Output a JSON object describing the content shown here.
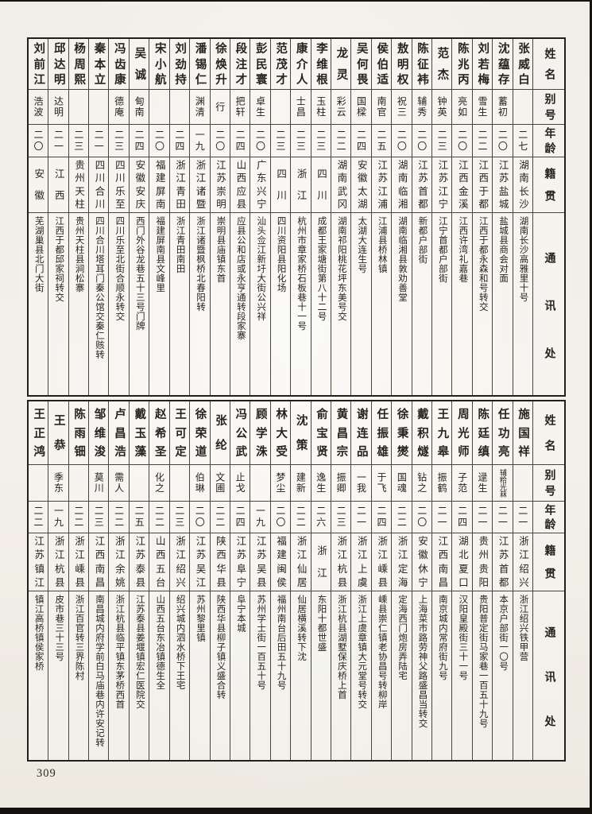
{
  "page": {
    "number": "309"
  },
  "headers": {
    "name": "姓名",
    "alias": "别号",
    "age": "年龄",
    "native": "籍贯",
    "address": "通讯处"
  },
  "tables": [
    {
      "id": "top",
      "people": [
        {
          "name": "张威白",
          "alias": "",
          "age": "二七",
          "native": "湖南长沙",
          "address": "湖南长沙高雅里十号"
        },
        {
          "name": "沈蕴存",
          "alias": "蓄初",
          "age": "二〇",
          "native": "江苏盐城",
          "address": "盐城县商会对面"
        },
        {
          "name": "刘若梅",
          "alias": "雪生",
          "age": "二二",
          "native": "江西于都",
          "address": "江西于都永森和号转交"
        },
        {
          "name": "陈兆丙",
          "alias": "亮如",
          "age": "二〇",
          "native": "江西金溪",
          "address": "江西许湾礼嘉巷"
        },
        {
          "name": "范杰",
          "alias": "钟英",
          "age": "二三",
          "native": "江苏江宁",
          "address": "江宁首都户部街"
        },
        {
          "name": "陈征袆",
          "alias": "辅秀",
          "age": "二〇",
          "native": "江苏首都",
          "address": "新都户部街"
        },
        {
          "name": "敖明权",
          "alias": "祝三",
          "age": "二〇",
          "native": "湖南临湘",
          "address": "湖南临湘县敦劝善堂"
        },
        {
          "name": "侯伯适",
          "alias": "南官",
          "age": "二五",
          "native": "江苏江浦",
          "address": "江浦县桥林镇"
        },
        {
          "name": "吴何畏",
          "alias": "国樑",
          "age": "二四",
          "native": "安徽太湖",
          "address": "太湖大连生号"
        },
        {
          "name": "龙灵",
          "alias": "彩云",
          "age": "二二",
          "native": "湖南武冈",
          "address": "湖南祁阳桃花坪东美号交"
        },
        {
          "name": "李维根",
          "alias": "玉柱",
          "age": "二三",
          "native": "四川",
          "address": "成都王家塘街第八十二号"
        },
        {
          "name": "康介人",
          "alias": "士昌",
          "age": "二三",
          "native": "浙江",
          "address": "杭州市章家桥石板巷十一号"
        },
        {
          "name": "范茂才",
          "alias": "",
          "age": "二三",
          "native": "四川",
          "address": "四川资阳县阳化场"
        },
        {
          "name": "彭民寰",
          "alias": "卓生",
          "age": "二〇",
          "native": "广东兴宁",
          "address": "汕头佥江新圩大街公兴祥"
        },
        {
          "name": "段注才",
          "alias": "把轩",
          "age": "二四",
          "native": "山西应县",
          "address": "应县公和店或永亨通转段家寨"
        },
        {
          "name": "徐焕升",
          "alias": "行",
          "age": "二〇",
          "native": "江苏崇明",
          "address": "崇明县庙镇东首"
        },
        {
          "name": "潘锡仁",
          "alias": "渊清",
          "age": "一九",
          "native": "浙江诸暨",
          "address": "浙江诸暨枫桥北春阳转"
        },
        {
          "name": "刘劲持",
          "alias": "",
          "age": "二四",
          "native": "浙江青田",
          "address": "浙江青田南田"
        },
        {
          "name": "宋小航",
          "alias": "",
          "age": "二〇",
          "native": "福建屏南",
          "address": "福建屏南县文峰里"
        },
        {
          "name": "吴诚",
          "alias": "甸南",
          "age": "二四",
          "native": "安徽安庆",
          "address": "西门外谷龙巷五十三号门牌"
        },
        {
          "name": "冯齿康",
          "alias": "德庵",
          "age": "二三",
          "native": "四川乐至",
          "address": "四川乐至北街合顺永转交"
        },
        {
          "name": "秦本立",
          "alias": "",
          "age": "二一",
          "native": "四川合川",
          "address": "四川合川塔耳门秦公馆交秦仁赅转"
        },
        {
          "name": "杨周熙",
          "alias": "",
          "age": "二三",
          "native": "贵州天柱",
          "address": "贵州天柱县涧松寨"
        },
        {
          "name": "邱达明",
          "alias": "达明",
          "age": "二一",
          "native": "江西",
          "address": "江西于都邱家祠转交"
        },
        {
          "name": "刘前江",
          "alias": "浩波",
          "age": "二〇",
          "native": "安徽",
          "address": "芜湖巢县北门大街"
        }
      ]
    },
    {
      "id": "bottom",
      "people": [
        {
          "name": "施国祥",
          "alias": "",
          "age": "二一",
          "native": "浙江绍兴",
          "address": "浙江绍兴铁甲营"
        },
        {
          "name": "任功亮",
          "alias": "辅粭光菻",
          "age": "二一",
          "native": "江苏首都",
          "address": "本京户部街一〇号"
        },
        {
          "name": "陈廷缜",
          "alias": "逯生",
          "age": "二一",
          "native": "贵州贵阳",
          "address": "贵阳普定街马家巷一百五十九号"
        },
        {
          "name": "周光师",
          "alias": "子范",
          "age": "二四",
          "native": "湖北夏口",
          "address": "汉阳皇殿街三十一号"
        },
        {
          "name": "王九皋",
          "alias": "振鹤",
          "age": "二一",
          "native": "江西南昌",
          "address": "南京城内常府街九号"
        },
        {
          "name": "戴积燧",
          "alias": "钻之",
          "age": "二〇",
          "native": "安徽休宁",
          "address": "上海菜市路劳神父路盛昌当转交"
        },
        {
          "name": "徐秉爕",
          "alias": "国魂",
          "age": "二二",
          "native": "浙江定海",
          "address": "定海西门炮房弄陆宅"
        },
        {
          "name": "任振雄",
          "alias": "于飞",
          "age": "二四",
          "native": "浙江嵊县",
          "address": "嵊县崇仁镇老协昌号转柳岸"
        },
        {
          "name": "谢连品",
          "alias": "一我",
          "age": "二一",
          "native": "浙江上虞",
          "address": "浙江上虞章镇大元堂号转交"
        },
        {
          "name": "黄昌宗",
          "alias": "振卿",
          "age": "二三",
          "native": "浙江杭县",
          "address": "浙江杭县湖墅保庆桥上首"
        },
        {
          "name": "俞宝贤",
          "alias": "逸生",
          "age": "二六",
          "native": "浙江",
          "address": "东阳十都世盛"
        },
        {
          "name": "沈策",
          "alias": "建新",
          "age": "二二",
          "native": "浙江仙居",
          "address": "仙居横溪转下沈"
        },
        {
          "name": "林大受",
          "alias": "梦尘",
          "age": "二〇",
          "native": "福建闽侯",
          "address": "福州南台后田五十九号"
        },
        {
          "name": "顾学洙",
          "alias": "",
          "age": "一九",
          "native": "江苏吴县",
          "address": "苏州学士街一百五十号"
        },
        {
          "name": "冯公武",
          "alias": "止戈",
          "age": "二四",
          "native": "江苏阜宁",
          "address": "阜宁本城"
        },
        {
          "name": "张纶",
          "alias": "文圃",
          "age": "二二",
          "native": "陕西华县",
          "address": "陕西华县柳子镇义盛合转"
        },
        {
          "name": "徐荣道",
          "alias": "伯琳",
          "age": "二〇",
          "native": "江苏吴江",
          "address": "苏州黎里镇"
        },
        {
          "name": "王可定",
          "alias": "",
          "age": "二三",
          "native": "浙江绍兴",
          "address": "绍兴城内泗水桥下王宅"
        },
        {
          "name": "赵希圣",
          "alias": "化之",
          "age": "二二",
          "native": "山西五台",
          "address": "山西五台东冶镇德生全"
        },
        {
          "name": "戴玉藻",
          "alias": "",
          "age": "二五",
          "native": "江苏泰县",
          "address": "江苏泰县姜堰镇宏仁医院交"
        },
        {
          "name": "卢昌浩",
          "alias": "需人",
          "age": "二二",
          "native": "浙江余姚",
          "address": "浙江杭县临平镇东茅桥西首"
        },
        {
          "name": "邹维浚",
          "alias": "莫川",
          "age": "二三",
          "native": "江西南昌",
          "address": "南昌城内府学前白马庙巷内许安记转"
        },
        {
          "name": "陈雨钿",
          "alias": "",
          "age": "二二",
          "native": "浙江嵊县",
          "address": "浙江百官转三界陈村"
        },
        {
          "name": "王恭",
          "alias": "季东",
          "age": "一九",
          "native": "浙江杭县",
          "address": "皮市巷三十三号"
        },
        {
          "name": "王正鸿",
          "alias": "",
          "age": "二二",
          "native": "江苏镇江",
          "address": "镇江高桥镇侯家桥"
        }
      ]
    }
  ]
}
